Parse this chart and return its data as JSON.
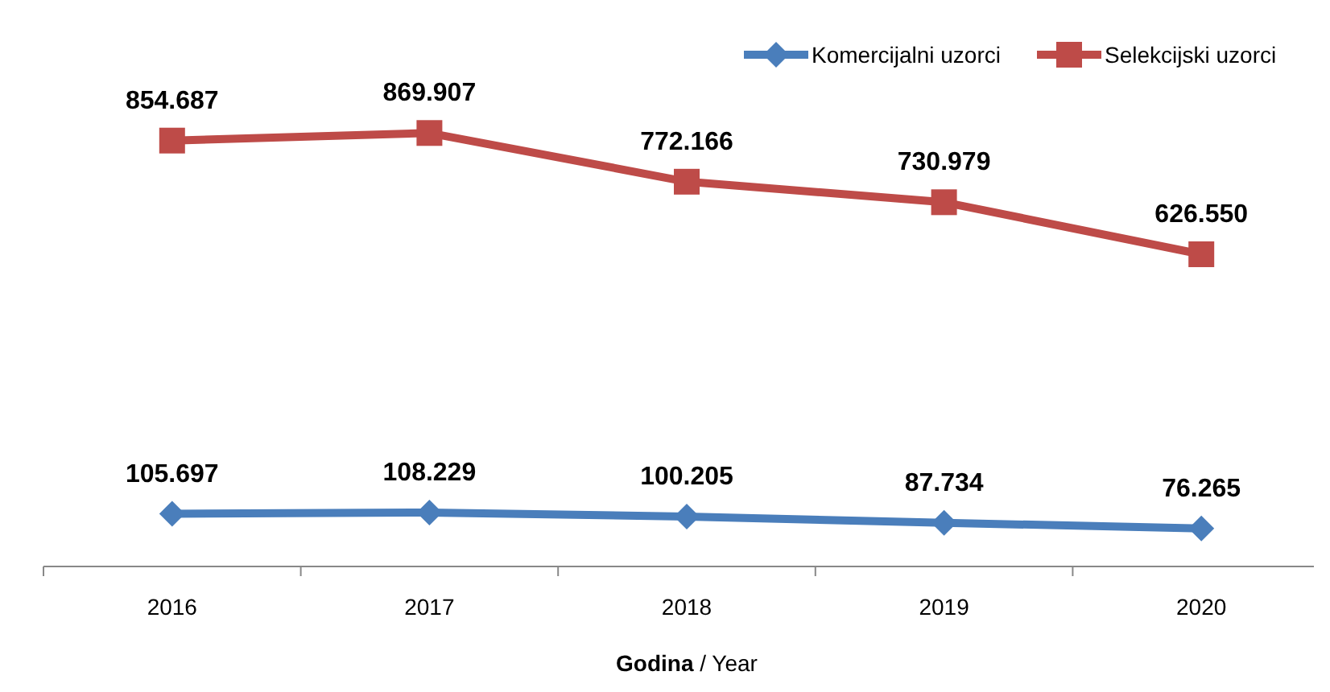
{
  "chart_data": {
    "type": "line",
    "xlabel": "Godina / Year",
    "categories": [
      "2016",
      "2017",
      "2018",
      "2019",
      "2020"
    ],
    "legend": "top right",
    "grid": false,
    "series": [
      {
        "name": "Komercijalni uzorci",
        "color": "#4a7ebb",
        "marker": "diamond",
        "values": [
          105.697,
          108.229,
          100.205,
          87.734,
          76.265
        ],
        "value_labels": [
          "105.697",
          "108.229",
          "100.205",
          "87.734",
          "76.265"
        ]
      },
      {
        "name": "Selekcijski uzorci",
        "color": "#be4b48",
        "marker": "square",
        "values": [
          854.687,
          869.907,
          772.166,
          730.979,
          626.55
        ],
        "value_labels": [
          "854.687",
          "869.907",
          "772.166",
          "730.979",
          "626.550"
        ]
      }
    ]
  }
}
